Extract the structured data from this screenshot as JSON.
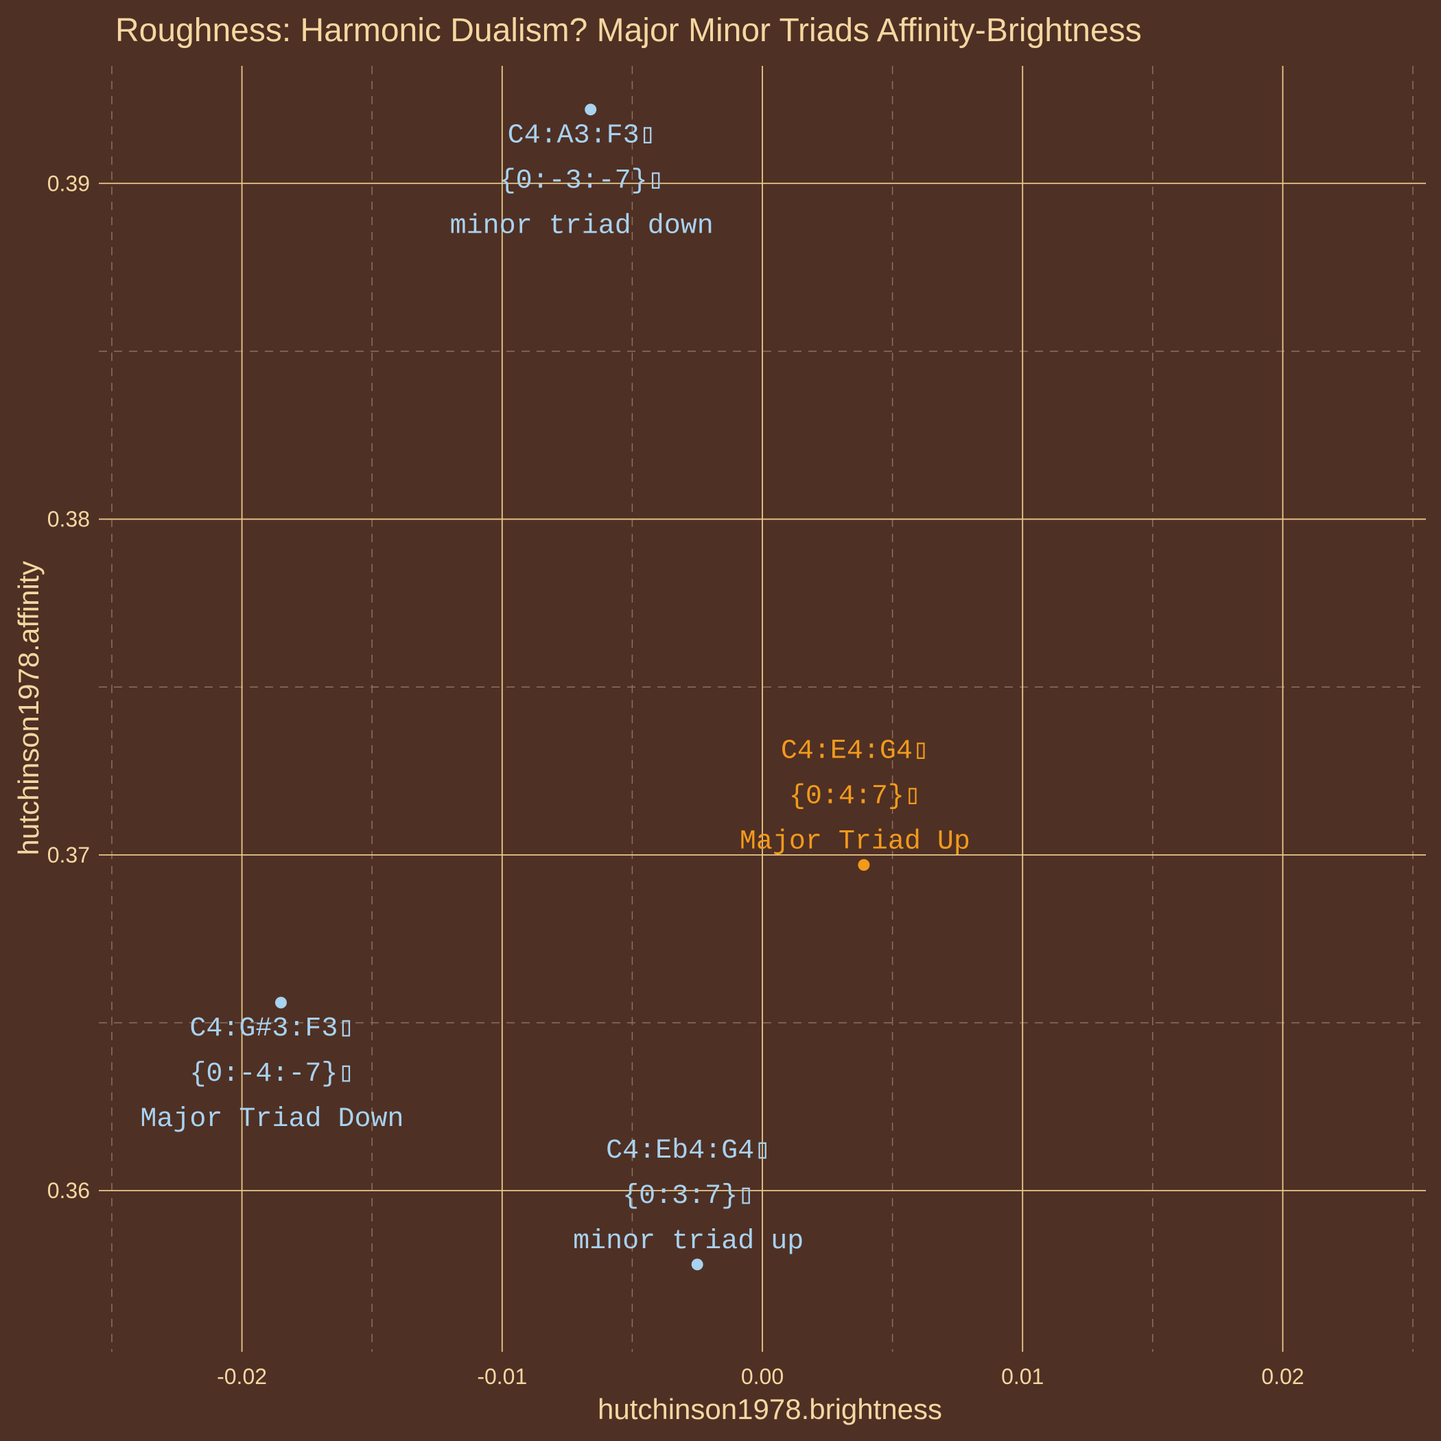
{
  "chart_data": {
    "type": "scatter",
    "title": "Roughness: Harmonic Dualism? Major Minor Triads Affinity-Brightness",
    "xlabel": "hutchinson1978.brightness",
    "ylabel": "hutchinson1978.affinity",
    "xlim": [
      -0.0255,
      0.0255
    ],
    "ylim": [
      0.3552,
      0.3935
    ],
    "x_ticks": [
      "-0.02",
      "-0.01",
      "0.00",
      "0.01",
      "0.02"
    ],
    "x_tick_values": [
      -0.02,
      -0.01,
      0.0,
      0.01,
      0.02
    ],
    "y_ticks": [
      "0.36",
      "0.37",
      "0.38",
      "0.39"
    ],
    "y_tick_values": [
      0.36,
      0.37,
      0.38,
      0.39
    ],
    "grid": true,
    "colors": {
      "background": "#4f3024",
      "grid_major": "#e8c98c",
      "grid_minor": "#8a7260",
      "text": "#f5d7a1",
      "minor_chords": "#a8d2f0",
      "major_up": "#f29a1c"
    },
    "points": [
      {
        "x": -0.0066,
        "y": 0.3922,
        "color": "#a8d2f0",
        "label_pos": "below",
        "label": [
          "C4:A3:F3▯",
          "{0:-3:-7}▯",
          "minor triad down"
        ]
      },
      {
        "x": 0.0039,
        "y": 0.3697,
        "color": "#f29a1c",
        "label_pos": "above",
        "label": [
          "C4:E4:G4▯",
          "{0:4:7}▯",
          "Major Triad Up"
        ]
      },
      {
        "x": -0.0185,
        "y": 0.3656,
        "color": "#a8d2f0",
        "label_pos": "below",
        "label": [
          "C4:G#3:F3▯",
          "{0:-4:-7}▯",
          "Major Triad Down"
        ]
      },
      {
        "x": -0.0025,
        "y": 0.3578,
        "color": "#a8d2f0",
        "label_pos": "above",
        "label": [
          "C4:Eb4:G4▯",
          "{0:3:7}▯",
          "minor triad up"
        ]
      }
    ]
  }
}
